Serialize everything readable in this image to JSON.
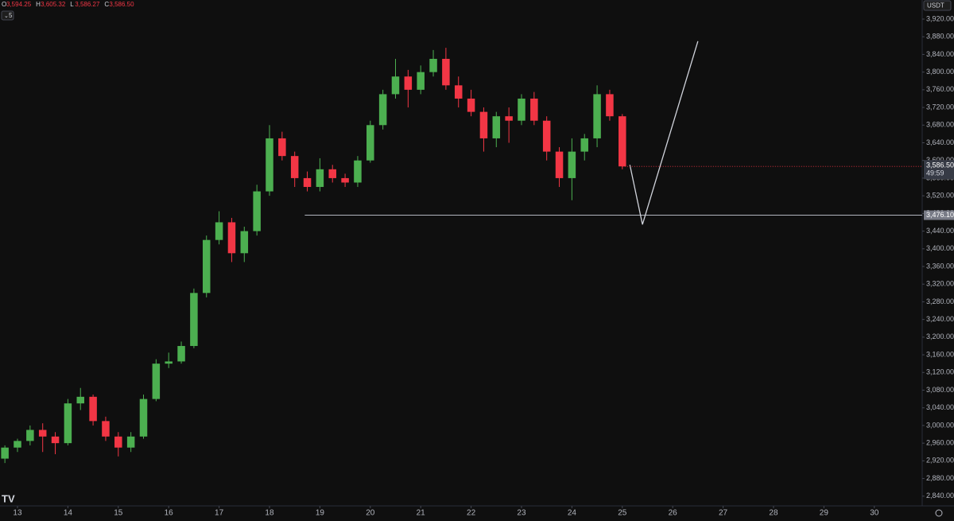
{
  "chart_data": {
    "type": "candlestick",
    "currency": "USDT",
    "interval": "5",
    "legend_ohlc": [
      {
        "key": "O",
        "value": "3,594.25"
      },
      {
        "key": "H",
        "value": "3,605.32"
      },
      {
        "key": "L",
        "value": "3,586.27"
      },
      {
        "key": "C",
        "value": "3,586.50"
      }
    ],
    "up_color": "#4caf50",
    "down_color": "#f23645",
    "x": [
      12.75,
      13,
      13.25,
      13.5,
      13.75,
      14,
      14.25,
      14.5,
      14.75,
      15,
      15.25,
      15.5,
      15.75,
      16,
      16.25,
      16.5,
      16.75,
      17,
      17.25,
      17.5,
      17.75,
      18,
      18.25,
      18.5,
      18.75,
      19,
      19.25,
      19.5,
      19.75,
      20,
      20.25,
      20.5,
      20.75,
      21,
      21.25,
      21.5,
      21.75,
      22,
      22.25,
      22.5,
      22.75,
      23,
      23.25,
      23.5,
      23.75,
      24,
      24.25,
      24.5,
      24.75,
      25
    ],
    "open": [
      2925,
      2950,
      2965,
      2990,
      2975,
      2960,
      3050,
      3065,
      3010,
      2975,
      2950,
      2975,
      3060,
      3140,
      3145,
      3180,
      3300,
      3420,
      3460,
      3390,
      3440,
      3530,
      3650,
      3610,
      3560,
      3540,
      3580,
      3560,
      3550,
      3600,
      3680,
      3750,
      3790,
      3760,
      3800,
      3830,
      3770,
      3740,
      3710,
      3650,
      3700,
      3690,
      3740,
      3690,
      3620,
      3560,
      3620,
      3650,
      3750,
      3700
    ],
    "high": [
      2955,
      2970,
      3000,
      3005,
      2985,
      3060,
      3085,
      3070,
      3020,
      2985,
      2985,
      3070,
      3150,
      3165,
      3190,
      3310,
      3430,
      3485,
      3470,
      3450,
      3545,
      3680,
      3665,
      3620,
      3575,
      3605,
      3590,
      3570,
      3610,
      3690,
      3760,
      3830,
      3805,
      3815,
      3850,
      3855,
      3790,
      3760,
      3720,
      3710,
      3720,
      3750,
      3755,
      3700,
      3630,
      3650,
      3660,
      3770,
      3760,
      3705
    ],
    "low": [
      2915,
      2940,
      2955,
      2940,
      2935,
      2955,
      3035,
      3000,
      2965,
      2930,
      2940,
      2970,
      3055,
      3130,
      3140,
      3175,
      3290,
      3410,
      3370,
      3370,
      3430,
      3520,
      3600,
      3540,
      3530,
      3530,
      3550,
      3540,
      3540,
      3595,
      3670,
      3740,
      3720,
      3750,
      3790,
      3760,
      3720,
      3700,
      3620,
      3630,
      3640,
      3680,
      3680,
      3600,
      3540,
      3510,
      3600,
      3630,
      3690,
      3580
    ],
    "close": [
      2950,
      2965,
      2990,
      2975,
      2960,
      3050,
      3065,
      3010,
      2975,
      2950,
      2975,
      3060,
      3140,
      3145,
      3180,
      3300,
      3420,
      3460,
      3390,
      3440,
      3530,
      3650,
      3610,
      3560,
      3540,
      3580,
      3560,
      3550,
      3600,
      3680,
      3750,
      3790,
      3760,
      3800,
      3830,
      3770,
      3740,
      3710,
      3650,
      3700,
      3690,
      3740,
      3690,
      3620,
      3560,
      3620,
      3650,
      3750,
      3700,
      3586.5
    ],
    "last_price": {
      "value": 3586.5,
      "label": "3,586.50",
      "countdown": "49:59"
    },
    "level": {
      "value": 3476.1,
      "label": "3,476.10",
      "start": 18.7
    },
    "projection": {
      "x": [
        25.15,
        25.4,
        26.5
      ],
      "y": [
        3590,
        3455,
        3870
      ]
    },
    "xlim": [
      12.653,
      30.95
    ],
    "xticks": [
      13,
      14,
      15,
      16,
      17,
      18,
      19,
      20,
      21,
      22,
      23,
      24,
      25,
      26,
      27,
      28,
      29,
      30
    ],
    "ylim": [
      2818,
      3938
    ],
    "yticks": [
      {
        "value": 2840,
        "label": "2,840.00"
      },
      {
        "value": 2880,
        "label": "2,880.00"
      },
      {
        "value": 2920,
        "label": "2,920.00"
      },
      {
        "value": 2960,
        "label": "2,960.00"
      },
      {
        "value": 3000,
        "label": "3,000.00"
      },
      {
        "value": 3040,
        "label": "3,040.00"
      },
      {
        "value": 3080,
        "label": "3,080.00"
      },
      {
        "value": 3120,
        "label": "3,120.00"
      },
      {
        "value": 3160,
        "label": "3,160.00"
      },
      {
        "value": 3200,
        "label": "3,200.00"
      },
      {
        "value": 3240,
        "label": "3,240.00"
      },
      {
        "value": 3280,
        "label": "3,280.00"
      },
      {
        "value": 3320,
        "label": "3,320.00"
      },
      {
        "value": 3360,
        "label": "3,360.00"
      },
      {
        "value": 3400,
        "label": "3,400.00"
      },
      {
        "value": 3440,
        "label": "3,440.00"
      },
      {
        "value": 3480,
        "label": "3,480.00"
      },
      {
        "value": 3520,
        "label": "3,520.00"
      },
      {
        "value": 3560,
        "label": "3,560.00"
      },
      {
        "value": 3600,
        "label": "3,600.00"
      },
      {
        "value": 3640,
        "label": "3,640.00"
      },
      {
        "value": 3680,
        "label": "3,680.00"
      },
      {
        "value": 3720,
        "label": "3,720.00"
      },
      {
        "value": 3760,
        "label": "3,760.00"
      },
      {
        "value": 3800,
        "label": "3,800.00"
      },
      {
        "value": 3840,
        "label": "3,840.00"
      },
      {
        "value": 3880,
        "label": "3,880.00"
      },
      {
        "value": 3920,
        "label": "3,920.00"
      }
    ]
  }
}
